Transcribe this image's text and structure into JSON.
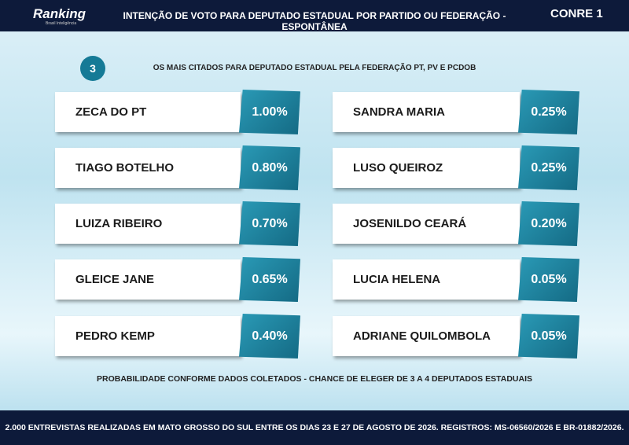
{
  "header": {
    "brand": "Ranking",
    "brand_sub": "Brasil Inteligência",
    "title": "INTENÇÃO DE VOTO PARA DEPUTADO ESTADUAL POR PARTIDO OU FEDERAÇÃO - ESPONTÂNEA",
    "logo": "CONRE 1"
  },
  "section": {
    "number": "3",
    "title": "OS MAIS CITADOS PARA DEPUTADO ESTADUAL PELA FEDERAÇÃO PT, PV E PCDOB"
  },
  "columns": [
    [
      {
        "name": "ZECA DO PT",
        "value": "1.00%"
      },
      {
        "name": "TIAGO BOTELHO",
        "value": "0.80%"
      },
      {
        "name": "LUIZA RIBEIRO",
        "value": "0.70%"
      },
      {
        "name": "GLEICE JANE",
        "value": "0.65%"
      },
      {
        "name": "PEDRO KEMP",
        "value": "0.40%"
      }
    ],
    [
      {
        "name": "SANDRA MARIA",
        "value": "0.25%"
      },
      {
        "name": "LUSO QUEIROZ",
        "value": "0.25%"
      },
      {
        "name": "JOSENILDO CEARÁ",
        "value": "0.20%"
      },
      {
        "name": "LUCIA HELENA",
        "value": "0.05%"
      },
      {
        "name": "ADRIANE QUILOMBOLA",
        "value": "0.05%"
      }
    ]
  ],
  "note": "PROBABILIDADE CONFORME DADOS COLETADOS - CHANCE DE ELEGER DE 3 A 4 DEPUTADOS ESTADUAIS",
  "footer": "2.000 ENTREVISTAS REALIZADAS EM MATO GROSSO DO SUL ENTRE OS DIAS 23 E 27 DE AGOSTO DE 2026. REGISTROS: MS-06560/2026 E BR-01882/2026."
}
